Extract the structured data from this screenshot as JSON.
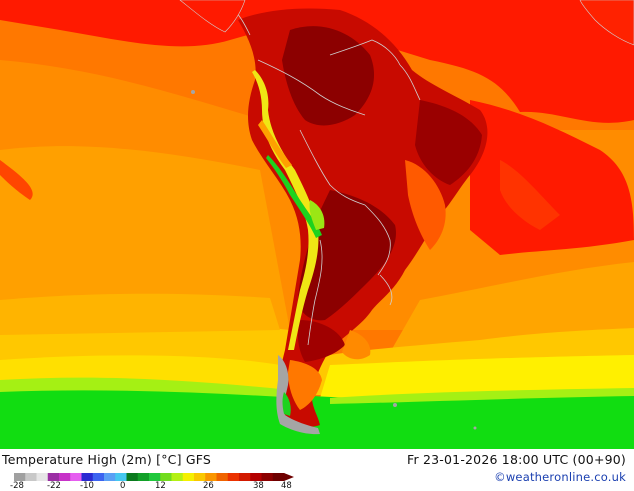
{
  "footer": {
    "title": "Temperature High (2m) [°C] GFS",
    "valid": "Fr 23-01-2026 18:00 UTC (00+90)",
    "credit": "©weatheronline.co.uk"
  },
  "legend": {
    "ticks": [
      "-28",
      "-22",
      "-10",
      "0",
      "12",
      "26",
      "38",
      "48"
    ],
    "colors": [
      "#a0a0a0",
      "#c8c8c8",
      "#e6e6e6",
      "#9b2ea4",
      "#c732c8",
      "#e65ef0",
      "#2a2ad2",
      "#3c64f0",
      "#5aa0f5",
      "#46c8f0",
      "#0a7a1e",
      "#12a028",
      "#20c83c",
      "#72dc1e",
      "#b4f014",
      "#f5f000",
      "#fac800",
      "#fa9600",
      "#f06400",
      "#eb3200",
      "#d21900",
      "#b40000",
      "#8c0000",
      "#6e0000"
    ]
  },
  "map": {
    "ocean_warm": "#ff2200",
    "ocean_orange": "#ff6a00",
    "ocean_light": "#ffaa00",
    "ocean_yellow": "#ffd500",
    "southern_green": "#11dd11",
    "land_dark": "#960000",
    "land_mid": "#c80a00",
    "andes_yellow": "#f0e614",
    "andes_green": "#1ed21e",
    "ice_gray": "#a5a5a5",
    "border": "#cfcfcf"
  }
}
